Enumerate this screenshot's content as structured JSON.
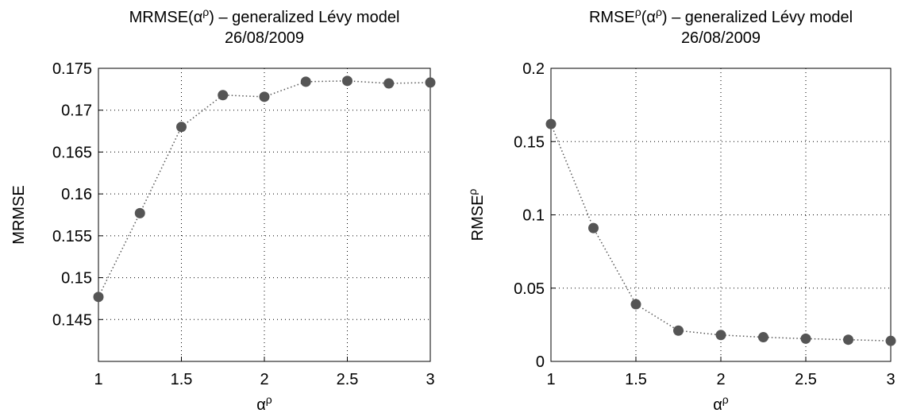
{
  "chart_data": [
    {
      "type": "line",
      "title": [
        "MRMSE(α",
        {
          "sup": "ρ"
        },
        ") – generalized Lévy model"
      ],
      "subtitle": "26/08/2009",
      "xlabel": [
        "α",
        {
          "sup": "ρ"
        }
      ],
      "ylabel": [
        "MRMSE"
      ],
      "x": [
        1,
        1.25,
        1.5,
        1.75,
        2,
        2.25,
        2.5,
        2.75,
        3
      ],
      "series": [
        {
          "color": "#555555",
          "values": [
            0.1477,
            0.1577,
            0.168,
            0.1718,
            0.1716,
            0.1734,
            0.1735,
            0.1732,
            0.1733
          ]
        }
      ],
      "xlim": [
        1,
        3
      ],
      "xticks": [
        1,
        1.5,
        2,
        2.5,
        3
      ],
      "ylim": [
        0.14,
        0.175
      ],
      "yticks": [
        0.145,
        0.15,
        0.155,
        0.16,
        0.165,
        0.17,
        0.175
      ],
      "grid": true
    },
    {
      "type": "line",
      "title": [
        "RMSE",
        {
          "sup": "ρ"
        },
        "(α",
        {
          "sup": "ρ"
        },
        ") – generalized Lévy model"
      ],
      "subtitle": "26/08/2009",
      "xlabel": [
        "α",
        {
          "sup": "ρ"
        }
      ],
      "ylabel": [
        "RMSE",
        {
          "sup": "ρ"
        }
      ],
      "x": [
        1,
        1.25,
        1.5,
        1.75,
        2,
        2.25,
        2.5,
        2.75,
        3
      ],
      "series": [
        {
          "color": "#555555",
          "values": [
            0.162,
            0.091,
            0.039,
            0.021,
            0.018,
            0.0165,
            0.0155,
            0.0148,
            0.014
          ]
        }
      ],
      "xlim": [
        1,
        3
      ],
      "xticks": [
        1,
        1.5,
        2,
        2.5,
        3
      ],
      "ylim": [
        0,
        0.2
      ],
      "yticks": [
        0,
        0.05,
        0.1,
        0.15,
        0.2
      ],
      "grid": true
    }
  ]
}
